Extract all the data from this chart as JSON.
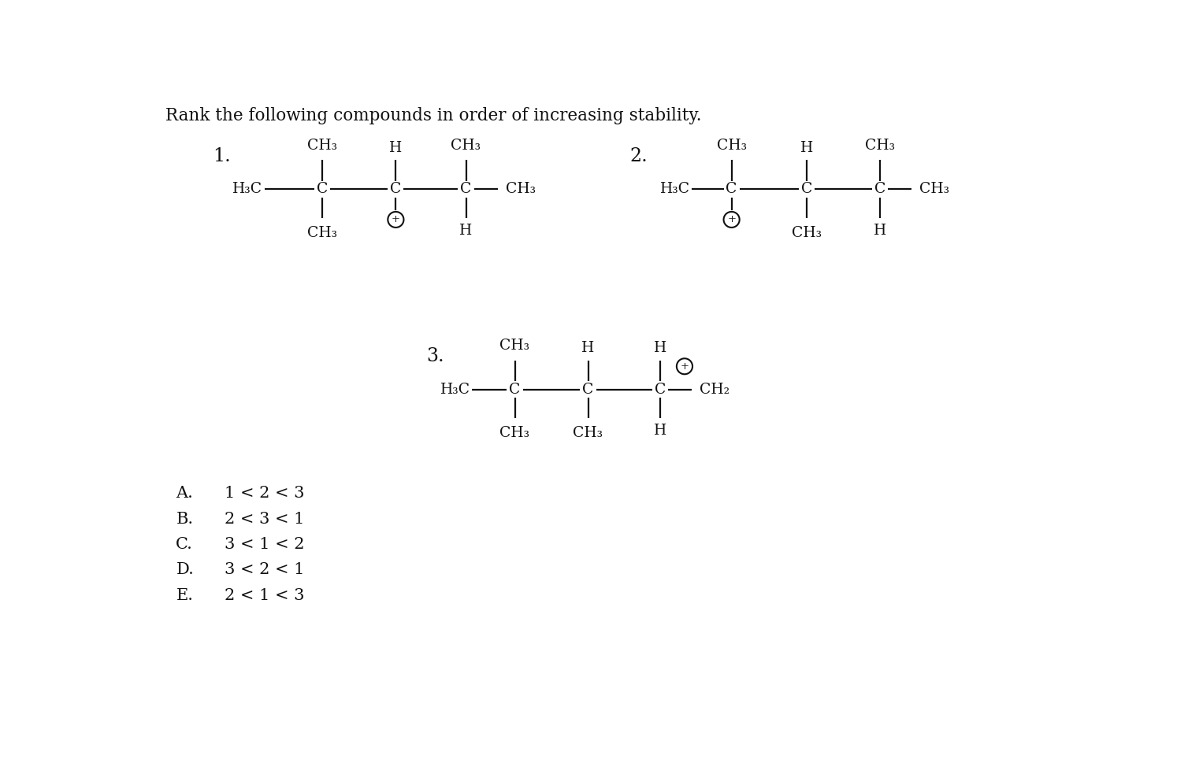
{
  "title": "Rank the following compounds in order of increasing stability.",
  "bg_color": "#ffffff",
  "text_color": "#1a1a1a",
  "font_family": "DejaVu Serif",
  "title_fontsize": 15.5,
  "label_fontsize": 17,
  "chem_fontsize": 13.5,
  "answer_letter_fontsize": 15,
  "answer_text_fontsize": 15,
  "answers": [
    {
      "letter": "A.",
      "text": "1 < 2 < 3"
    },
    {
      "letter": "B.",
      "text": "2 < 3 < 1"
    },
    {
      "letter": "C.",
      "text": "3 < 1 < 2"
    },
    {
      "letter": "D.",
      "text": "3 < 2 < 1"
    },
    {
      "letter": "E.",
      "text": "2 < 1 < 3"
    }
  ]
}
